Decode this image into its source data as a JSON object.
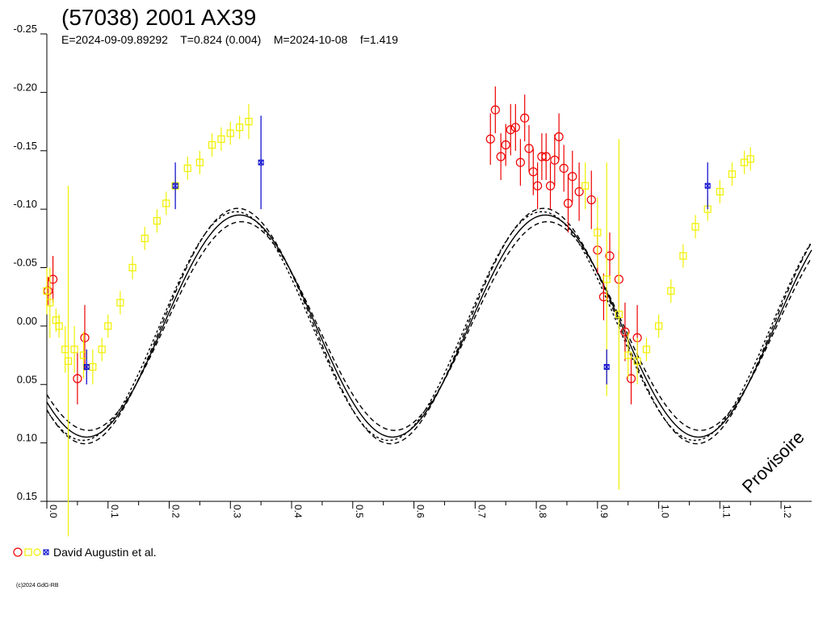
{
  "chart_data": {
    "type": "scatter",
    "title": "(57038) 2001 AX39",
    "subtitle": "E=2024-09-09.89292    T=0.824 (0.004)    M=2024-10-08    f=1.419",
    "xlabel": "",
    "ylabel": "",
    "xlim": [
      0.0,
      1.25
    ],
    "ylim": [
      -0.25,
      0.15
    ],
    "y_inverted": true,
    "x_ticks": [
      "0.0",
      "0.1",
      "0.2",
      "0.3",
      "0.4",
      "0.5",
      "0.6",
      "0.7",
      "0.8",
      "0.9",
      "1.0",
      "1.1",
      "1.2"
    ],
    "y_ticks": [
      "-0.25",
      "-0.20",
      "-0.15",
      "-0.10",
      "-0.05",
      "0.00",
      "0.05",
      "0.10",
      "0.15"
    ],
    "grid": false,
    "watermark": "Provisoire",
    "legend_label": "David Augustin et al.",
    "copyright": "(c)2024 GdG-RB",
    "fit_curve": {
      "mean": 0.0,
      "amplitude": 0.095,
      "shift": -0.08,
      "peaks_at_phase": [
        0.319,
        0.8105
      ],
      "troughs_at_phase": [
        0.065,
        0.565,
        1.065
      ]
    },
    "colors": {
      "curve": "#000000",
      "red": "#ee0000",
      "yellow": "#f0f000",
      "blue": "#0000cc"
    },
    "series": [
      {
        "marker": "circle",
        "color": "red",
        "points": [
          [
            0.002,
            -0.03,
            0.012
          ],
          [
            0.01,
            -0.04,
            0.02
          ],
          [
            0.05,
            0.045,
            0.022
          ],
          [
            0.062,
            0.01,
            0.028
          ],
          [
            0.725,
            -0.16,
            0.022
          ],
          [
            0.733,
            -0.185,
            0.02
          ],
          [
            0.742,
            -0.145,
            0.02
          ],
          [
            0.75,
            -0.155,
            0.018
          ],
          [
            0.758,
            -0.168,
            0.022
          ],
          [
            0.766,
            -0.17,
            0.02
          ],
          [
            0.774,
            -0.14,
            0.02
          ],
          [
            0.781,
            -0.178,
            0.02
          ],
          [
            0.788,
            -0.152,
            0.02
          ],
          [
            0.795,
            -0.132,
            0.02
          ],
          [
            0.802,
            -0.12,
            0.02
          ],
          [
            0.809,
            -0.145,
            0.02
          ],
          [
            0.816,
            -0.145,
            0.02
          ],
          [
            0.823,
            -0.12,
            0.02
          ],
          [
            0.83,
            -0.142,
            0.022
          ],
          [
            0.837,
            -0.162,
            0.02
          ],
          [
            0.845,
            -0.135,
            0.02
          ],
          [
            0.852,
            -0.105,
            0.025
          ],
          [
            0.859,
            -0.128,
            0.022
          ],
          [
            0.87,
            -0.115,
            0.025
          ],
          [
            0.89,
            -0.108,
            0.025
          ],
          [
            0.9,
            -0.065,
            0.02
          ],
          [
            0.91,
            -0.025,
            0.02
          ],
          [
            0.92,
            -0.06,
            0.02
          ],
          [
            0.935,
            -0.04,
            0.025
          ],
          [
            0.945,
            0.005,
            0.025
          ],
          [
            0.955,
            0.045,
            0.022
          ],
          [
            0.965,
            0.01,
            0.028
          ]
        ]
      },
      {
        "marker": "square",
        "color": "yellow",
        "points": [
          [
            0.0,
            -0.03,
            0.02
          ],
          [
            0.005,
            -0.02,
            0.03
          ],
          [
            0.015,
            -0.005,
            0.01
          ],
          [
            0.02,
            0.0,
            0.01
          ],
          [
            0.03,
            0.02,
            0.02
          ],
          [
            0.035,
            0.03,
            0.15
          ],
          [
            0.045,
            0.02,
            0.02
          ],
          [
            0.06,
            0.025,
            0.02
          ],
          [
            0.075,
            0.035,
            0.015
          ],
          [
            0.09,
            0.02,
            0.01
          ],
          [
            0.1,
            0.0,
            0.01
          ],
          [
            0.12,
            -0.02,
            0.01
          ],
          [
            0.14,
            -0.05,
            0.01
          ],
          [
            0.16,
            -0.075,
            0.01
          ],
          [
            0.18,
            -0.09,
            0.01
          ],
          [
            0.195,
            -0.105,
            0.01
          ],
          [
            0.21,
            -0.12,
            0.01
          ],
          [
            0.23,
            -0.135,
            0.01
          ],
          [
            0.25,
            -0.14,
            0.01
          ],
          [
            0.27,
            -0.155,
            0.01
          ],
          [
            0.285,
            -0.16,
            0.01
          ],
          [
            0.3,
            -0.165,
            0.01
          ],
          [
            0.315,
            -0.17,
            0.01
          ],
          [
            0.33,
            -0.175,
            0.015
          ],
          [
            0.88,
            -0.12,
            0.02
          ],
          [
            0.9,
            -0.08,
            0.03
          ],
          [
            0.915,
            -0.04,
            0.1
          ],
          [
            0.935,
            -0.01,
            0.15
          ],
          [
            0.95,
            0.025,
            0.02
          ],
          [
            0.965,
            0.03,
            0.02
          ],
          [
            0.98,
            0.02,
            0.01
          ],
          [
            1.0,
            0.0,
            0.01
          ],
          [
            1.02,
            -0.03,
            0.01
          ],
          [
            1.04,
            -0.06,
            0.01
          ],
          [
            1.06,
            -0.085,
            0.01
          ],
          [
            1.08,
            -0.1,
            0.01
          ],
          [
            1.1,
            -0.115,
            0.01
          ],
          [
            1.12,
            -0.13,
            0.01
          ],
          [
            1.14,
            -0.14,
            0.01
          ],
          [
            1.15,
            -0.143,
            0.01
          ]
        ]
      },
      {
        "marker": "cross-square",
        "color": "blue",
        "points": [
          [
            0.065,
            0.035,
            0.015
          ],
          [
            0.21,
            -0.12,
            0.02
          ],
          [
            0.35,
            -0.14,
            0.04
          ],
          [
            0.915,
            0.035,
            0.015
          ],
          [
            1.08,
            -0.12,
            0.02
          ]
        ]
      }
    ]
  }
}
